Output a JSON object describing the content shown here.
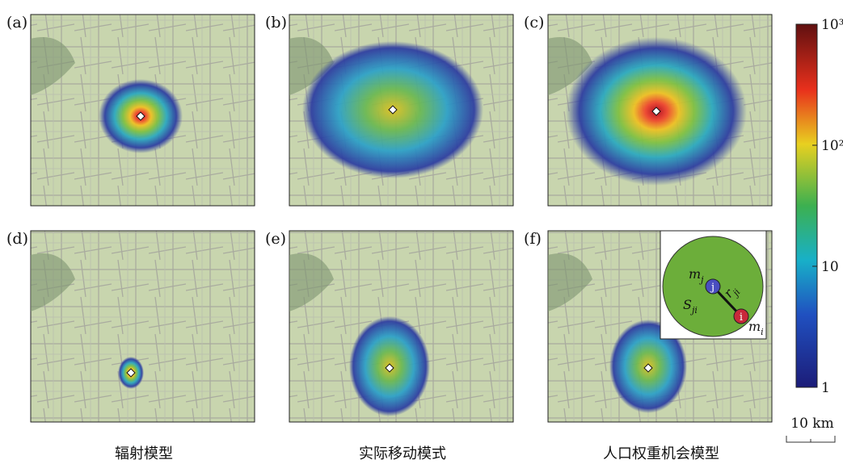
{
  "panels": [
    "(a)",
    "(b)",
    "(c)",
    "(d)",
    "(e)",
    "(f)"
  ],
  "captions": [
    "辐射模型",
    "实际移动模式",
    "人口权重机会模型"
  ],
  "colorbar": {
    "scale": "log",
    "lim": [
      1,
      1000
    ],
    "ticks": [
      1,
      10,
      {
        "value": 100,
        "label": "10²"
      },
      {
        "value": 1000,
        "label": "10³"
      }
    ]
  },
  "scale_bar": "10 km",
  "inset": {
    "node_j": "j",
    "node_i": "i",
    "m_j": {
      "main": "m",
      "sub": "j"
    },
    "r_ji": {
      "main": "r",
      "sub": "ji"
    },
    "S_ji": {
      "main": "S",
      "sub": "ji"
    },
    "m_i": {
      "main": "m",
      "sub": "i"
    }
  }
}
